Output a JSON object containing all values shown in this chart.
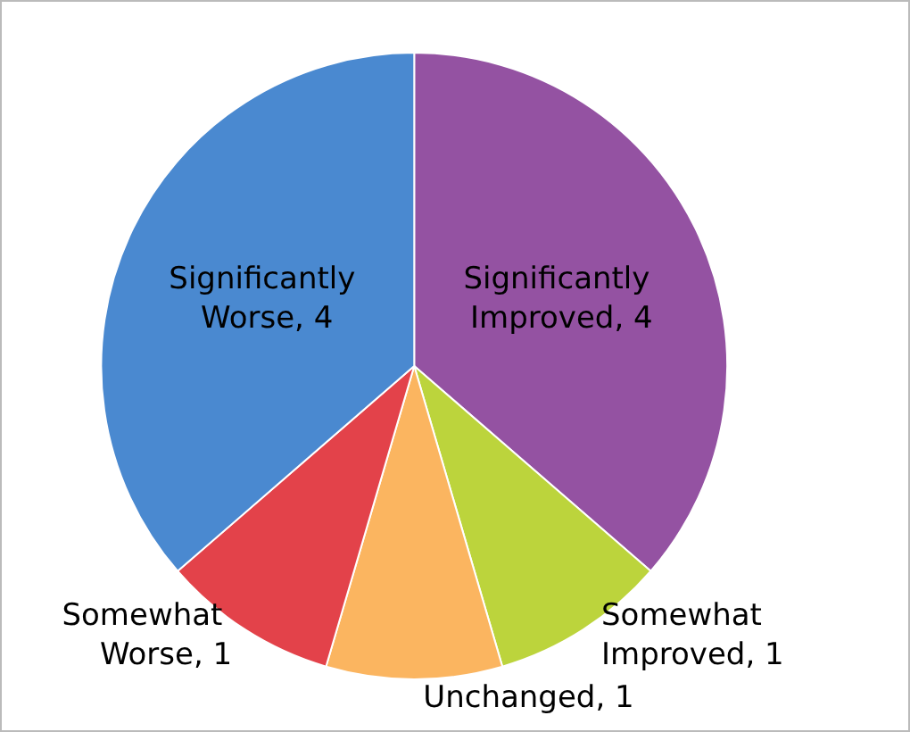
{
  "chart_data": {
    "type": "pie",
    "categories": [
      null,
      null,
      null,
      null,
      null
    ],
    "values": [
      4,
      1,
      1,
      1,
      4
    ],
    "colors": [
      "#9452a2",
      "#bcd43c",
      "#fbb560",
      "#e3424a",
      "#4a89d0"
    ],
    "value_labels": [
      "Significantly Improved, 4",
      "Somewhat Improved, 1",
      "Unchanged, 1",
      "Somewhat Worse, 1",
      "Significantly Worse, 4"
    ]
  }
}
